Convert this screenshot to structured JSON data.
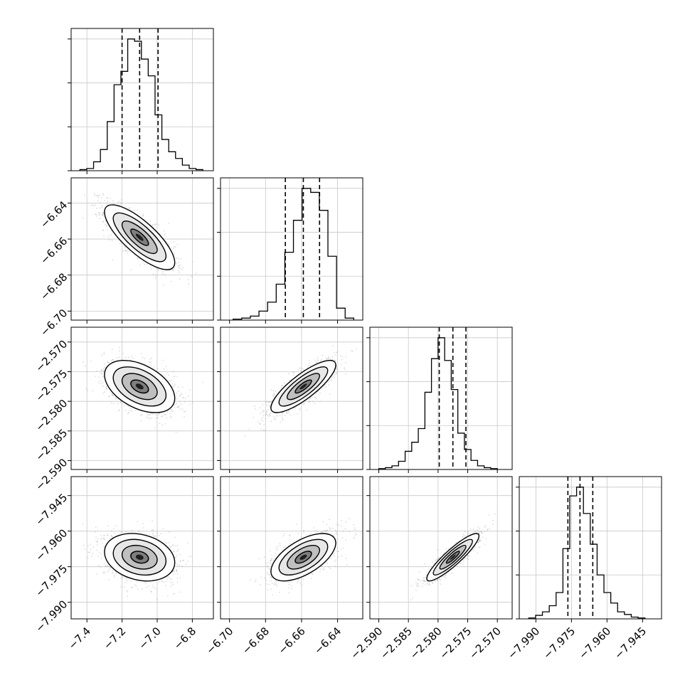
{
  "chart_data": {
    "type": "corner",
    "grid": true,
    "parameters": [
      {
        "ticks": [
          -7.4,
          -7.2,
          -7.0,
          -6.8
        ],
        "tick_labels": [
          "−7.4",
          "−7.2",
          "−7.0",
          "−6.8"
        ],
        "range": [
          -7.49,
          -6.68
        ],
        "mean": -7.1,
        "std": 0.1,
        "quantiles": [
          -7.2,
          -7.1,
          -6.995
        ],
        "histogram": {
          "edges": [
            -7.44,
            -6.74
          ],
          "counts": [
            1,
            2,
            8,
            19,
            44,
            77,
            89,
            118,
            116,
            100,
            85,
            50,
            28,
            17,
            11,
            5,
            2,
            1
          ]
        }
      },
      {
        "ticks": [
          -6.7,
          -6.68,
          -6.66,
          -6.64
        ],
        "tick_labels": [
          "−6.70",
          "−6.68",
          "−6.66",
          "−6.64"
        ],
        "range": [
          -6.705,
          -6.626
        ],
        "mean": -6.659,
        "std": 0.009,
        "quantiles": [
          -6.669,
          -6.659,
          -6.65
        ],
        "histogram": {
          "edges": [
            -6.698,
            -6.631
          ],
          "counts": [
            1,
            2,
            4,
            9,
            18,
            36,
            68,
            100,
            132,
            128,
            110,
            64,
            12,
            2
          ]
        }
      },
      {
        "ticks": [
          -2.59,
          -2.585,
          -2.58,
          -2.575,
          -2.57
        ],
        "tick_labels": [
          "−2.590",
          "−2.585",
          "−2.580",
          "−2.575",
          "−2.570"
        ],
        "range": [
          -2.5915,
          -2.5675
        ],
        "mean": -2.5775,
        "std": 0.0022,
        "quantiles": [
          -2.5798,
          -2.5775,
          -2.5753
        ],
        "histogram": {
          "edges": [
            -2.59,
            -2.57
          ],
          "counts": [
            1,
            2,
            4,
            9,
            20,
            30,
            45,
            85,
            122,
            145,
            120,
            88,
            40,
            22,
            10,
            4,
            2,
            1
          ]
        }
      },
      {
        "ticks": [
          -7.99,
          -7.975,
          -7.96,
          -7.945
        ],
        "tick_labels": [
          "−7.990",
          "−7.975",
          "−7.960",
          "−7.945"
        ],
        "range": [
          -7.997,
          -7.937
        ],
        "mean": -7.971,
        "std": 0.005,
        "quantiles": [
          -7.9765,
          -7.9714,
          -7.966
        ],
        "histogram": {
          "edges": [
            -7.993,
            -7.944
          ],
          "counts": [
            1,
            4,
            8,
            15,
            30,
            80,
            140,
            150,
            120,
            85,
            50,
            30,
            18,
            8,
            5,
            2,
            1
          ]
        }
      }
    ],
    "correlations": {
      "1-0": -0.78,
      "2-0": -0.45,
      "2-1": 0.82,
      "3-0": -0.22,
      "3-1": 0.6,
      "3-2": 0.9
    },
    "contour_levels_sigma": [
      0.5,
      1.0,
      1.5,
      2.0
    ],
    "colors": {
      "line": "#000000",
      "samples": "#9a9a9a",
      "grid": "#c8c8c8"
    }
  }
}
